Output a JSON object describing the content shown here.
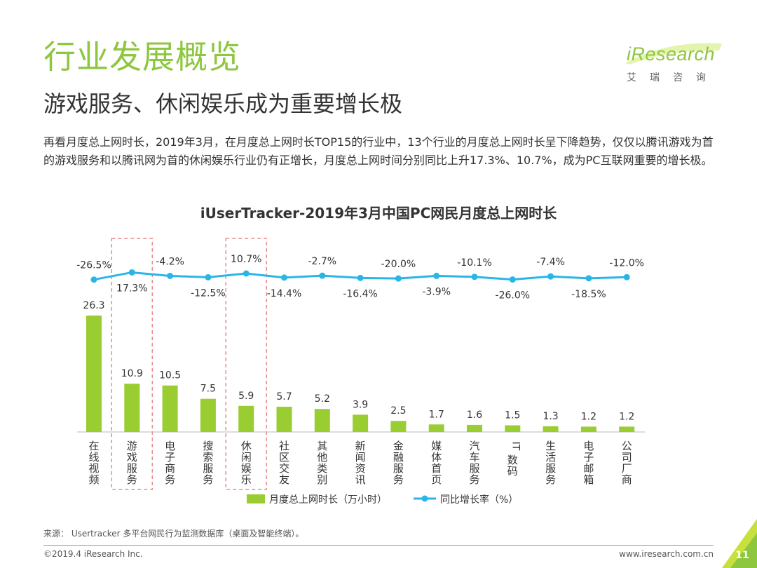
{
  "header": {
    "title": "行业发展概览",
    "subtitle": "游戏服务、休闲娱乐成为重要增长极"
  },
  "logo": {
    "word": "iResearch",
    "sub": "艾瑞咨询"
  },
  "intro": "再看月度总上网时长，2019年3月，在月度总上网时长TOP15的行业中，13个行业的月度总上网时长呈下降趋势，仅仅以腾讯游戏为首的游戏服务和以腾讯网为首的休闲娱乐行业仍有正增长，月度总上网时间分别同比上升17.3%、10.7%，成为PC互联网重要的增长极。",
  "chart_data": {
    "type": "bar",
    "title": "iUserTracker-2019年3月中国PC网民月度总上网时长",
    "categories": [
      "在线视频",
      "游戏服务",
      "电子商务",
      "搜索服务",
      "休闲娱乐",
      "社区交友",
      "其他类别",
      "新闻资讯",
      "金融服务",
      "媒体首页",
      "汽车服务",
      "IT数码",
      "生活服务",
      "电子邮箱",
      "公司厂商"
    ],
    "series": [
      {
        "name": "月度总上网时长（万小时）",
        "type": "bar",
        "color": "#9acd32",
        "values": [
          26.3,
          10.9,
          10.5,
          7.5,
          5.9,
          5.7,
          5.2,
          3.9,
          2.5,
          1.7,
          1.6,
          1.5,
          1.3,
          1.2,
          1.2
        ],
        "labels": [
          "26.3",
          "10.9",
          "10.5",
          "7.5",
          "5.9",
          "5.7",
          "5.2",
          "3.9",
          "2.5",
          "1.7",
          "1.6",
          "1.5",
          "1.3",
          "1.2",
          "1.2"
        ]
      },
      {
        "name": "同比增长率（%）",
        "type": "line",
        "color": "#29b6e6",
        "values": [
          -26.5,
          17.3,
          -4.2,
          -12.5,
          10.7,
          -14.4,
          -2.7,
          -16.4,
          -20.0,
          -3.9,
          -10.1,
          -26.0,
          -7.4,
          -18.5,
          -12.0
        ],
        "labels": [
          "-26.5%",
          "17.3%",
          "-4.2%",
          "-12.5%",
          "10.7%",
          "-14.4%",
          "-2.7%",
          "-16.4%",
          "-20.0%",
          "-3.9%",
          "-10.1%",
          "-26.0%",
          "-7.4%",
          "-18.5%",
          "-12.0%"
        ]
      }
    ],
    "highlighted": [
      "游戏服务",
      "休闲娱乐"
    ],
    "legend_position": "bottom",
    "grid": false
  },
  "footer": {
    "source": "来源： Usertracker 多平台网民行为监测数据库（桌面及智能终端）。",
    "copyright": "©2019.4 iResearch Inc.",
    "site": "www.iresearch.com.cn",
    "page": "11"
  },
  "colors": {
    "accent": "#8dc63f",
    "bar": "#9acd32",
    "line": "#29b6e6",
    "highlight_box": "#e88a8a"
  }
}
